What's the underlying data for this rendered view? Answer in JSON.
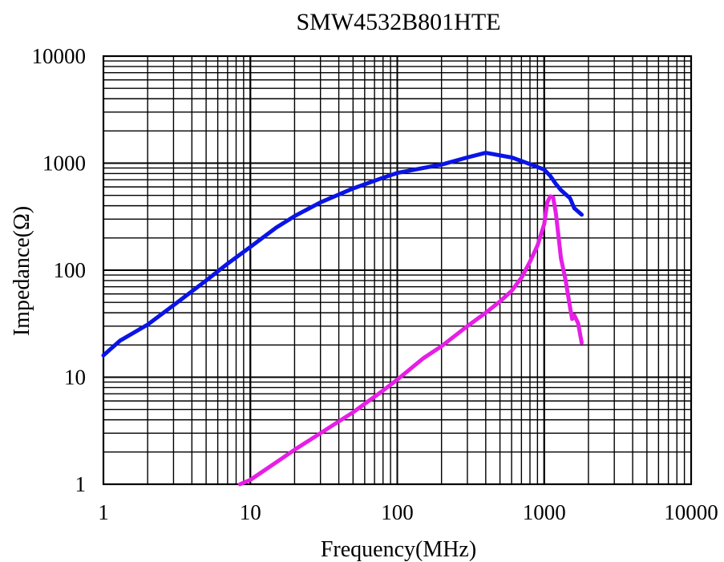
{
  "chart_data": {
    "type": "line",
    "title": "SMW4532B801HTE",
    "xlabel": "Frequency(MHz)",
    "ylabel": "Impedance(Ω)",
    "x_scale": "log",
    "y_scale": "log",
    "xlim": [
      1,
      10000
    ],
    "ylim": [
      1,
      10000
    ],
    "grid": true,
    "x_ticks": [
      "1",
      "10",
      "100",
      "1000",
      "10000"
    ],
    "y_ticks": [
      "1",
      "10",
      "100",
      "1000",
      "10000"
    ],
    "series": [
      {
        "color": "#0a14e6",
        "x": [
          1,
          1.3,
          2,
          3,
          5,
          7,
          10,
          15,
          20,
          30,
          50,
          80,
          100,
          150,
          200,
          300,
          400,
          600,
          800,
          1000,
          1100,
          1200,
          1300,
          1500,
          1600,
          1800
        ],
        "y": [
          16,
          22,
          31,
          47,
          80,
          115,
          165,
          250,
          320,
          430,
          580,
          730,
          810,
          900,
          970,
          1130,
          1250,
          1130,
          980,
          870,
          760,
          640,
          560,
          470,
          380,
          330
        ]
      },
      {
        "color": "#e61ee6",
        "x": [
          8.5,
          10,
          15,
          20,
          30,
          50,
          80,
          100,
          150,
          200,
          300,
          400,
          500,
          600,
          700,
          800,
          900,
          1000,
          1050,
          1100,
          1150,
          1200,
          1250,
          1300,
          1400,
          1500,
          1550,
          1600,
          1700,
          1800
        ],
        "y": [
          1,
          1.1,
          1.6,
          2.1,
          3,
          4.7,
          7.5,
          9.5,
          15,
          19.5,
          30,
          40,
          51,
          64,
          85,
          120,
          170,
          270,
          430,
          490,
          480,
          340,
          210,
          130,
          80,
          45,
          35,
          38,
          32,
          21
        ]
      }
    ]
  }
}
